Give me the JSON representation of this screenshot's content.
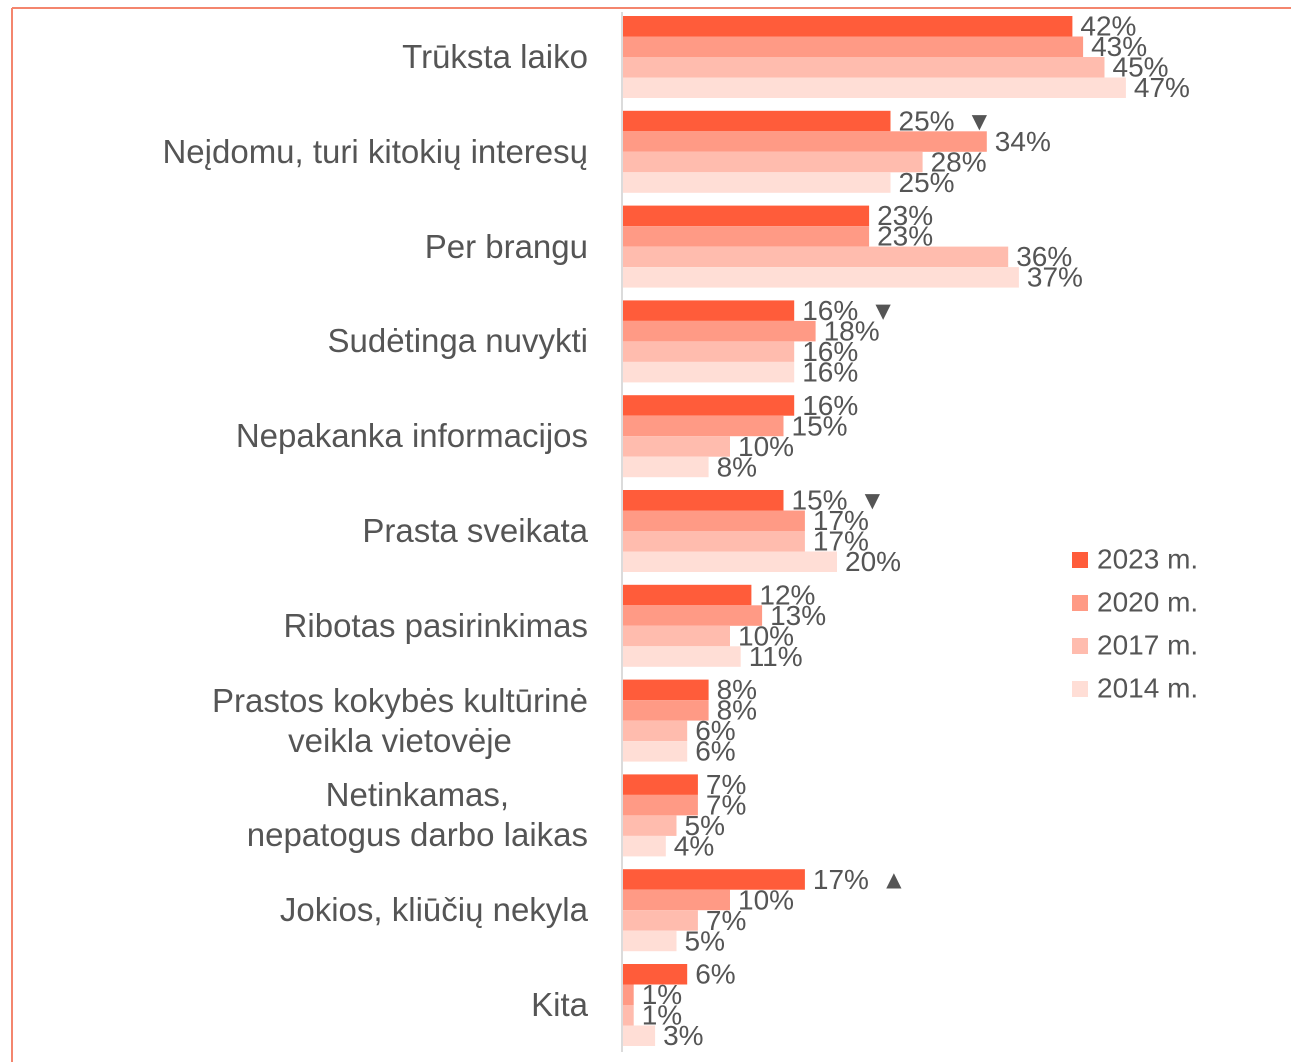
{
  "chart_data": {
    "type": "hbar",
    "categories": [
      "Trūksta laiko",
      "Neįdomu, turi kitokių interesų",
      "Per brangu",
      "Sudėtinga nuvykti",
      "Nepakanka informacijos",
      "Prasta sveikata",
      "Ribotas pasirinkimas",
      "Prastos kokybės kultūrinė\nveikla vietovėje",
      "Netinkamas,\nnepatogus darbo laikas",
      "Jokios, kliūčių nekyla",
      "Kita"
    ],
    "xlim": [
      0,
      50
    ],
    "legend": "right",
    "series": [
      {
        "name": "2023 m.",
        "color": "#ff5c3a",
        "values": [
          42,
          25,
          23,
          16,
          16,
          15,
          12,
          8,
          7,
          17,
          6
        ],
        "value_labels": [
          "42%",
          "25%",
          "23%",
          "16%",
          "16%",
          "15%",
          "12%",
          "8%",
          "7%",
          "17%",
          "6%"
        ],
        "markers": [
          null,
          "▼",
          null,
          "▼",
          null,
          "▼",
          null,
          null,
          null,
          "▲",
          null
        ]
      },
      {
        "name": "2020 m.",
        "color": "#ff9a85",
        "values": [
          43,
          34,
          23,
          18,
          15,
          17,
          13,
          8,
          7,
          10,
          1
        ],
        "value_labels": [
          "43%",
          "34%",
          "23%",
          "18%",
          "15%",
          "17%",
          "13%",
          "8%",
          "7%",
          "10%",
          "1%"
        ]
      },
      {
        "name": "2017 m.",
        "color": "#ffbcae",
        "values": [
          45,
          28,
          36,
          16,
          10,
          17,
          10,
          6,
          5,
          7,
          1
        ],
        "value_labels": [
          "45%",
          "28%",
          "36%",
          "16%",
          "10%",
          "17%",
          "10%",
          "6%",
          "5%",
          "7%",
          "1%"
        ]
      },
      {
        "name": "2014 m.",
        "color": "#ffded6",
        "values": [
          47,
          25,
          37,
          16,
          8,
          20,
          11,
          6,
          4,
          5,
          3
        ],
        "value_labels": [
          "47%",
          "25%",
          "37%",
          "16%",
          "8%",
          "20%",
          "11%",
          "6%",
          "4%",
          "5%",
          "3%"
        ]
      }
    ]
  }
}
